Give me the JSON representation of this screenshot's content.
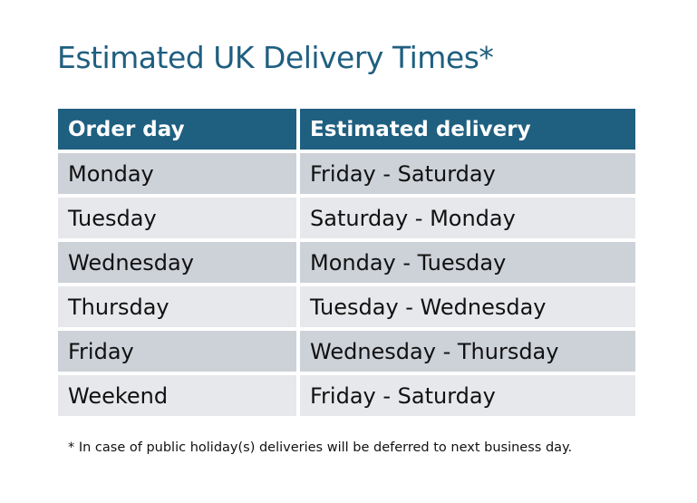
{
  "title": "Estimated UK Delivery Times*",
  "colors": {
    "header": "#1f5f80",
    "row_dark": "#cdd1d8",
    "row_light": "#e6e8eb"
  },
  "table": {
    "headers": [
      "Order day",
      "Estimated delivery"
    ],
    "rows": [
      [
        "Monday",
        "Friday - Saturday"
      ],
      [
        "Tuesday",
        "Saturday - Monday"
      ],
      [
        "Wednesday",
        "Monday - Tuesday"
      ],
      [
        "Thursday",
        "Tuesday - Wednesday"
      ],
      [
        "Friday",
        "Wednesday - Thursday"
      ],
      [
        "Weekend",
        "Friday - Saturday"
      ]
    ]
  },
  "footnote": "* In case of public holiday(s) deliveries will be deferred to next business day."
}
